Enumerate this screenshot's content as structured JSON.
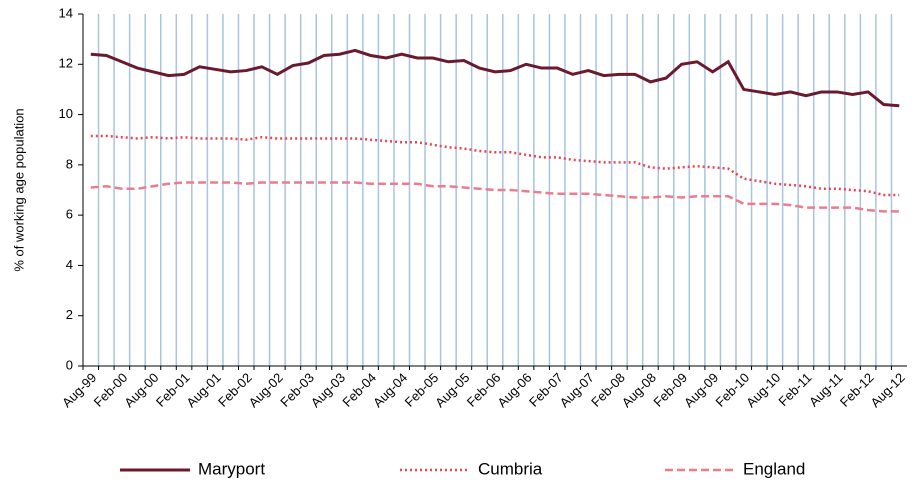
{
  "chart_data": {
    "type": "line",
    "ylabel": "% of working age population",
    "categories": [
      "Aug-99",
      null,
      "Feb-00",
      null,
      "Aug-00",
      null,
      "Feb-01",
      null,
      "Aug-01",
      null,
      "Feb-02",
      null,
      "Aug-02",
      null,
      "Feb-03",
      null,
      "Aug-03",
      null,
      "Feb-04",
      null,
      "Aug-04",
      null,
      "Feb-05",
      null,
      "Aug-05",
      null,
      "Feb-06",
      null,
      "Aug-06",
      null,
      "Feb-07",
      null,
      "Aug-07",
      null,
      "Feb-08",
      null,
      "Aug-08",
      null,
      "Feb-09",
      null,
      "Aug-09",
      null,
      "Feb-10",
      null,
      "Aug-10",
      null,
      "Feb-11",
      null,
      "Aug-11",
      null,
      "Feb-12",
      null,
      "Aug-12"
    ],
    "series": [
      {
        "name": "Maryport",
        "color": "#6b1a2e",
        "style": "solid",
        "values": [
          12.4,
          12.35,
          12.1,
          11.85,
          11.7,
          11.55,
          11.6,
          11.9,
          11.8,
          11.7,
          11.75,
          11.9,
          11.6,
          11.95,
          12.05,
          12.35,
          12.4,
          12.55,
          12.35,
          12.25,
          12.4,
          12.25,
          12.25,
          12.1,
          12.15,
          11.85,
          11.7,
          11.75,
          12.0,
          11.85,
          11.85,
          11.6,
          11.75,
          11.55,
          11.6,
          11.6,
          11.3,
          11.45,
          12.0,
          12.1,
          11.7,
          12.1,
          11.0,
          10.9,
          10.8,
          10.9,
          10.75,
          10.9,
          10.9,
          10.8,
          10.9,
          10.4,
          10.35
        ]
      },
      {
        "name": "Cumbria",
        "color": "#e8434f",
        "style": "dotted",
        "values": [
          9.15,
          9.15,
          9.1,
          9.05,
          9.1,
          9.05,
          9.1,
          9.05,
          9.05,
          9.05,
          9.0,
          9.1,
          9.05,
          9.05,
          9.05,
          9.05,
          9.05,
          9.05,
          9.0,
          8.95,
          8.9,
          8.9,
          8.8,
          8.7,
          8.65,
          8.55,
          8.5,
          8.5,
          8.4,
          8.3,
          8.3,
          8.2,
          8.15,
          8.1,
          8.1,
          8.1,
          7.9,
          7.85,
          7.9,
          7.95,
          7.9,
          7.85,
          7.45,
          7.35,
          7.25,
          7.2,
          7.15,
          7.05,
          7.05,
          7.0,
          6.95,
          6.8,
          6.8
        ]
      },
      {
        "name": "England",
        "color": "#ec7c8c",
        "style": "dashed",
        "values": [
          7.1,
          7.15,
          7.05,
          7.05,
          7.15,
          7.25,
          7.3,
          7.3,
          7.3,
          7.3,
          7.25,
          7.3,
          7.3,
          7.3,
          7.3,
          7.3,
          7.3,
          7.3,
          7.25,
          7.25,
          7.25,
          7.25,
          7.15,
          7.15,
          7.1,
          7.05,
          7.0,
          7.0,
          6.95,
          6.9,
          6.85,
          6.85,
          6.85,
          6.8,
          6.75,
          6.7,
          6.7,
          6.75,
          6.7,
          6.75,
          6.75,
          6.75,
          6.45,
          6.45,
          6.45,
          6.4,
          6.3,
          6.3,
          6.3,
          6.3,
          6.2,
          6.15,
          6.15
        ]
      }
    ],
    "ylim": [
      0,
      14
    ],
    "yticks": [
      0,
      2,
      4,
      6,
      8,
      10,
      12,
      14
    ],
    "grid": "x",
    "grid_color": "#a9c4df",
    "legend": "bottom"
  }
}
